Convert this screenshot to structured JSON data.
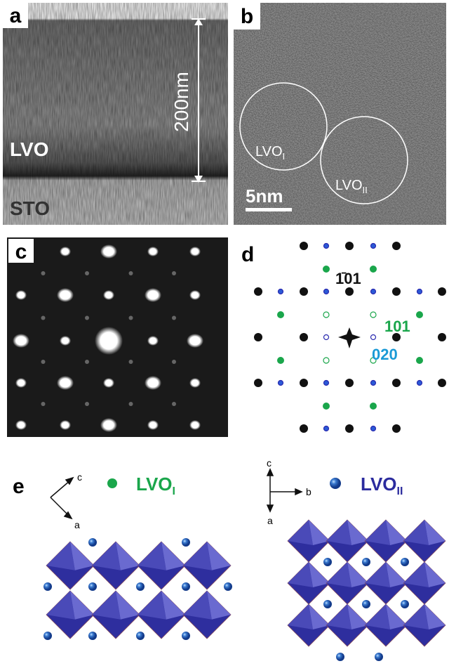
{
  "panel_a": {
    "label": "a",
    "film": "LVO",
    "substrate": "STO",
    "thickness": "200nm"
  },
  "panel_b": {
    "label": "b",
    "domain_1": {
      "base": "LVO",
      "sub": "I"
    },
    "domain_2": {
      "base": "LVO",
      "sub": "II"
    },
    "scale": "5nm"
  },
  "panel_c": {
    "label": "c"
  },
  "panel_d": {
    "label": "d",
    "reflection_1": "1̄01",
    "reflection_2": "101",
    "reflection_3": "020"
  },
  "panel_e": {
    "label": "e",
    "left_axes": {
      "up": "c",
      "down": "a"
    },
    "left_legend": {
      "base": "LVO",
      "sub": "I"
    },
    "right_axes": {
      "up": "c",
      "right": "b",
      "down": "a"
    },
    "right_legend": {
      "base": "LVO",
      "sub": "II"
    }
  }
}
